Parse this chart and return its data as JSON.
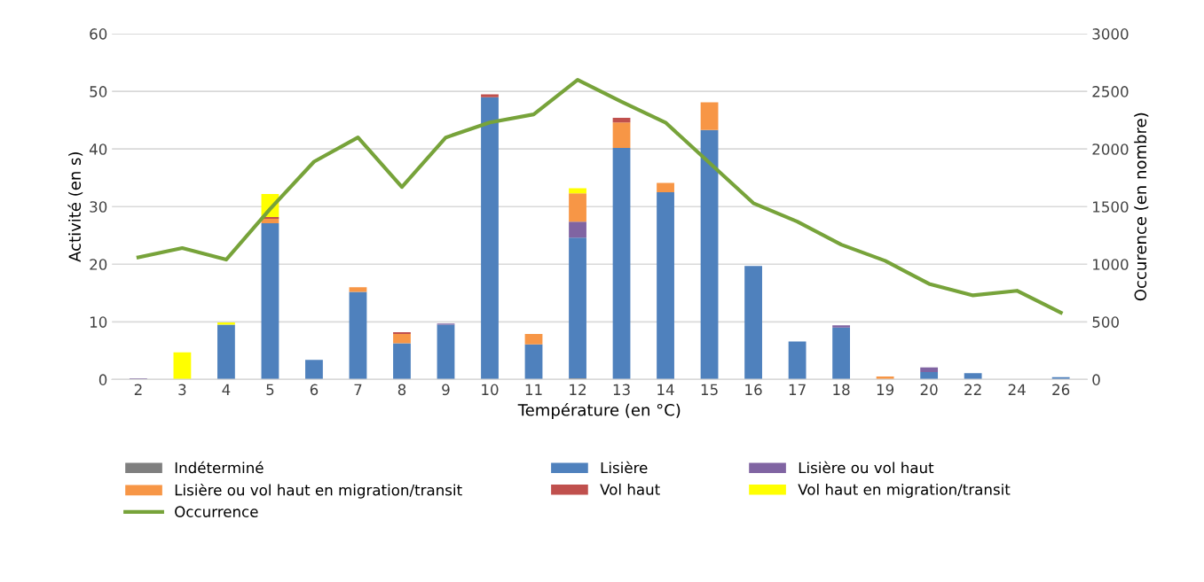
{
  "chart_data": {
    "type": "bar",
    "stacked": true,
    "xlabel": "Température (en °C)",
    "ylabel": "Activité (en s)",
    "y2label": "Occurence (en nombre)",
    "categories": [
      "2",
      "3",
      "4",
      "5",
      "6",
      "7",
      "8",
      "9",
      "10",
      "11",
      "12",
      "13",
      "14",
      "15",
      "16",
      "17",
      "18",
      "19",
      "20",
      "22",
      "24",
      "26"
    ],
    "series": [
      {
        "name": "Indéterminé",
        "color": "#7f7f7f",
        "values": [
          0,
          0,
          0,
          0,
          0,
          0,
          0,
          0,
          0,
          0,
          0.2,
          0,
          0,
          0,
          0,
          0,
          0,
          0,
          0,
          0,
          0,
          0
        ]
      },
      {
        "name": "Lisière",
        "color": "#4f81bd",
        "values": [
          0,
          0,
          9.5,
          27.1,
          3.4,
          15.2,
          6.3,
          9.5,
          49.0,
          6.1,
          24.4,
          40.2,
          32.5,
          43.3,
          19.7,
          6.6,
          9.0,
          0,
          1.3,
          1.1,
          0,
          0.4
        ]
      },
      {
        "name": "Lisière ou vol haut",
        "color": "#8064a2",
        "values": [
          0.2,
          0,
          0,
          0,
          0,
          0,
          0,
          0.2,
          0,
          0,
          2.8,
          0,
          0,
          0,
          0,
          0,
          0.4,
          0,
          0.8,
          0,
          0,
          0
        ]
      },
      {
        "name": "Lisière ou vol haut en migration/transit",
        "color": "#f79646",
        "values": [
          0,
          0,
          0,
          0.8,
          0,
          0.8,
          1.6,
          0,
          0,
          1.8,
          4.9,
          4.4,
          1.6,
          4.8,
          0,
          0,
          0,
          0.5,
          0,
          0,
          0,
          0
        ]
      },
      {
        "name": "Vol haut",
        "color": "#c0504d",
        "values": [
          0,
          0,
          0,
          0.3,
          0,
          0,
          0.3,
          0,
          0.5,
          0,
          0,
          0.8,
          0,
          0,
          0,
          0,
          0,
          0,
          0,
          0,
          0,
          0
        ]
      },
      {
        "name": "Vol haut en migration/transit",
        "color": "#ffff00",
        "values": [
          0,
          4.7,
          0.4,
          4.0,
          0,
          0,
          0,
          0,
          0,
          0,
          0.9,
          0,
          0,
          0,
          0,
          0,
          0,
          0,
          0,
          0,
          0,
          0
        ]
      },
      {
        "name": "Occurrence",
        "type": "line",
        "axis": "y2",
        "color": "#77a33a",
        "values": [
          1060,
          1140,
          1040,
          1480,
          1890,
          2100,
          1670,
          2100,
          2230,
          2300,
          2600,
          2410,
          2230,
          1880,
          1530,
          1370,
          1170,
          1030,
          830,
          730,
          770,
          580
        ]
      }
    ],
    "ylim": [
      0,
      60
    ],
    "yticks": [
      0,
      10,
      20,
      30,
      40,
      50,
      60
    ],
    "y2lim": [
      0,
      3000
    ],
    "y2ticks": [
      0,
      500,
      1000,
      1500,
      2000,
      2500,
      3000
    ],
    "grid": "y",
    "legend": "bottom"
  }
}
